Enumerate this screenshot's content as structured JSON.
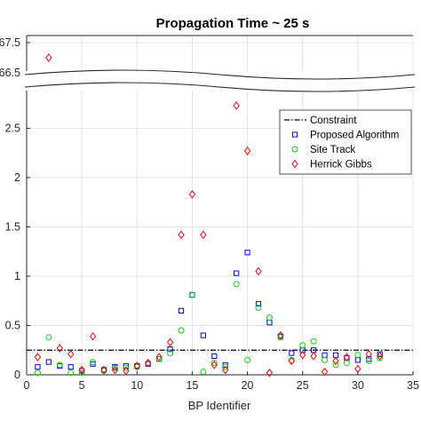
{
  "chart_data": {
    "type": "scatter",
    "title": "Propagation Time ~ 25 s",
    "xlabel": "BP Identifier",
    "ylabel": "",
    "xlim": [
      0,
      35
    ],
    "ylim_lower": [
      0,
      2.9
    ],
    "ylim_upper": [
      66.5,
      67.5
    ],
    "broken_y_axis": true,
    "grid": true,
    "legend_position": "top-right",
    "x_ticks": [
      "0",
      "5",
      "10",
      "15",
      "20",
      "25",
      "30",
      "35"
    ],
    "y_ticks_lower": [
      "0",
      "0.5",
      "1",
      "1.5",
      "2",
      "2.5"
    ],
    "y_ticks_upper": [
      "66.5",
      "67.5"
    ],
    "constraint": {
      "name": "Constraint",
      "value": 0.25
    },
    "series": [
      {
        "name": "Proposed Algorithm",
        "marker": "square",
        "color": "#0000ff",
        "x": [
          1,
          2,
          3,
          4,
          5,
          6,
          7,
          8,
          9,
          10,
          11,
          12,
          13,
          14,
          15,
          16,
          17,
          18,
          19,
          20,
          21,
          22,
          23,
          24,
          25,
          26,
          27,
          28,
          29,
          30,
          31,
          32
        ],
        "y": [
          0.08,
          0.13,
          0.09,
          0.08,
          0.04,
          0.11,
          0.05,
          0.08,
          0.09,
          0.09,
          0.11,
          0.16,
          0.26,
          0.65,
          0.81,
          0.4,
          0.19,
          0.1,
          1.03,
          1.24,
          0.72,
          0.53,
          0.39,
          0.22,
          0.25,
          0.25,
          0.2,
          0.2,
          0.17,
          0.15,
          0.16,
          0.21
        ]
      },
      {
        "name": "Site Track",
        "marker": "circle",
        "color": "#00dd00",
        "x": [
          1,
          2,
          3,
          4,
          5,
          6,
          7,
          8,
          9,
          10,
          11,
          12,
          13,
          14,
          15,
          16,
          17,
          18,
          19,
          20,
          21,
          22,
          23,
          24,
          25,
          26,
          27,
          28,
          29,
          30,
          31,
          32
        ],
        "y": [
          0.02,
          0.38,
          0.1,
          0.02,
          0.02,
          0.13,
          0.04,
          0.07,
          0.07,
          0.08,
          0.12,
          0.16,
          0.22,
          0.45,
          0.81,
          0.03,
          0.12,
          0.08,
          0.92,
          0.15,
          0.68,
          0.58,
          0.38,
          0.15,
          0.3,
          0.34,
          0.15,
          0.1,
          0.12,
          0.2,
          0.14,
          0.17
        ]
      },
      {
        "name": "Herrick Gibbs",
        "marker": "diamond",
        "color": "#ff0000",
        "x": [
          1,
          3,
          4,
          5,
          6,
          7,
          8,
          9,
          10,
          11,
          12,
          13,
          14,
          15,
          16,
          17,
          18,
          19,
          20,
          21,
          22,
          23,
          24,
          25,
          26,
          27,
          28,
          29,
          30,
          31,
          32
        ],
        "y": [
          0.18,
          0.27,
          0.21,
          0.05,
          0.39,
          0.05,
          0.05,
          0.04,
          0.09,
          0.12,
          0.18,
          0.33,
          1.42,
          1.83,
          1.42,
          0.1,
          0.05,
          2.73,
          2.27,
          1.05,
          0.02,
          0.4,
          0.14,
          0.2,
          0.19,
          0.03,
          0.14,
          0.18,
          0.06,
          0.21,
          0.19
        ]
      }
    ],
    "outliers": [
      {
        "series": "Herrick Gibbs",
        "x": 2,
        "y": 67.0
      }
    ]
  }
}
